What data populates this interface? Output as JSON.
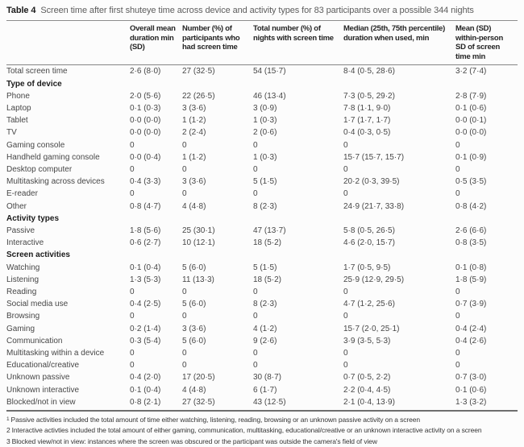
{
  "table": {
    "label": "Table 4",
    "title": "Screen time after first shuteye time across device and activity types for 83 participants over a possible 344 nights",
    "columns": [
      "",
      "Overall mean duration min (SD)",
      "Number (%) of participants who had screen time",
      "Total number (%) of nights with screen time",
      "Median (25th, 75th percentile) duration when used, min",
      "Mean (SD) within-person SD of screen time min"
    ],
    "rows": [
      {
        "label": "Total screen time",
        "sup": "",
        "type": "data",
        "values": [
          "2·6 (8·0)",
          "27 (32·5)",
          "54 (15·7)",
          "8·4 (0·5, 28·6)",
          "3·2 (7·4)"
        ]
      },
      {
        "label": "Type of device",
        "sup": "",
        "type": "section",
        "values": [
          "",
          "",
          "",
          "",
          ""
        ]
      },
      {
        "label": "Phone",
        "sup": "",
        "type": "data",
        "values": [
          "2·0 (5·6)",
          "22 (26·5)",
          "46 (13·4)",
          "7·3 (0·5, 29·2)",
          "2·8 (7·9)"
        ]
      },
      {
        "label": "Laptop",
        "sup": "",
        "type": "data",
        "values": [
          "0·1 (0·3)",
          "3 (3·6)",
          "3 (0·9)",
          "7·8 (1·1, 9·0)",
          "0·1 (0·6)"
        ]
      },
      {
        "label": "Tablet",
        "sup": "",
        "type": "data",
        "values": [
          "0·0 (0·0)",
          "1 (1·2)",
          "1 (0·3)",
          "1·7 (1·7, 1·7)",
          "0·0 (0·1)"
        ]
      },
      {
        "label": "TV",
        "sup": "",
        "type": "data",
        "values": [
          "0·0 (0·0)",
          "2 (2·4)",
          "2 (0·6)",
          "0·4 (0·3, 0·5)",
          "0·0 (0·0)"
        ]
      },
      {
        "label": "Gaming console",
        "sup": "",
        "type": "data",
        "values": [
          "0",
          "0",
          "0",
          "0",
          "0"
        ]
      },
      {
        "label": "Handheld gaming console",
        "sup": "",
        "type": "data",
        "values": [
          "0·0 (0·4)",
          "1 (1·2)",
          "1 (0·3)",
          "15·7 (15·7, 15·7)",
          "0·1 (0·9)"
        ]
      },
      {
        "label": "Desktop computer",
        "sup": "",
        "type": "data",
        "values": [
          "0",
          "0",
          "0",
          "0",
          "0"
        ]
      },
      {
        "label": "Multitasking across devices",
        "sup": "",
        "type": "data",
        "values": [
          "0·4 (3·3)",
          "3 (3·6)",
          "5 (1·5)",
          "20·2 (0·3, 39·5)",
          "0·5 (3·5)"
        ]
      },
      {
        "label": "E-reader",
        "sup": "",
        "type": "data",
        "values": [
          "0",
          "0",
          "0",
          "0",
          "0"
        ]
      },
      {
        "label": "Other",
        "sup": "",
        "type": "data",
        "values": [
          "0·8 (4·7)",
          "4 (4·8)",
          "8 (2·3)",
          "24·9 (21·7, 33·8)",
          "0·8 (4·2)"
        ]
      },
      {
        "label": "Activity types",
        "sup": "",
        "type": "section",
        "values": [
          "",
          "",
          "",
          "",
          ""
        ]
      },
      {
        "label": "Passive",
        "sup": "1",
        "type": "data",
        "values": [
          "1·8 (5·6)",
          "25 (30·1)",
          "47 (13·7)",
          "5·8 (0·5, 26·5)",
          "2·6 (6·6)"
        ]
      },
      {
        "label": "Interactive",
        "sup": "2",
        "type": "data",
        "values": [
          "0·6 (2·7)",
          "10 (12·1)",
          "18 (5·2)",
          "4·6 (2·0, 15·7)",
          "0·8 (3·5)"
        ]
      },
      {
        "label": "Screen activities",
        "sup": "",
        "type": "section",
        "values": [
          "",
          "",
          "",
          "",
          ""
        ]
      },
      {
        "label": "Watching",
        "sup": "",
        "type": "data",
        "values": [
          "0·1 (0·4)",
          "5 (6·0)",
          "5 (1·5)",
          "1·7 (0·5, 9·5)",
          "0·1 (0·8)"
        ]
      },
      {
        "label": "Listening",
        "sup": "",
        "type": "data",
        "values": [
          "1·3 (5·3)",
          "11 (13·3)",
          "18 (5·2)",
          "25·9 (12·9, 29·5)",
          "1·8 (5·9)"
        ]
      },
      {
        "label": "Reading",
        "sup": "",
        "type": "data",
        "values": [
          "0",
          "0",
          "0",
          "0",
          "0"
        ]
      },
      {
        "label": "Social media use",
        "sup": "",
        "type": "data",
        "values": [
          "0·4 (2·5)",
          "5 (6·0)",
          "8 (2·3)",
          "4·7 (1·2, 25·6)",
          "0·7 (3·9)"
        ]
      },
      {
        "label": "Browsing",
        "sup": "",
        "type": "data",
        "values": [
          "0",
          "0",
          "0",
          "0",
          "0"
        ]
      },
      {
        "label": "Gaming",
        "sup": "",
        "type": "data",
        "values": [
          "0·2 (1·4)",
          "3 (3·6)",
          "4 (1·2)",
          "15·7 (2·0, 25·1)",
          "0·4 (2·4)"
        ]
      },
      {
        "label": "Communication",
        "sup": "",
        "type": "data",
        "values": [
          "0·3 (5·4)",
          "5 (6·0)",
          "9 (2·6)",
          "3·9 (3·5, 5·3)",
          "0·4 (2·6)"
        ]
      },
      {
        "label": "Multitasking within a device",
        "sup": "",
        "type": "data",
        "values": [
          "0",
          "0",
          "0",
          "0",
          "0"
        ]
      },
      {
        "label": "Educational/creative",
        "sup": "",
        "type": "data",
        "values": [
          "0",
          "0",
          "0",
          "0",
          "0"
        ]
      },
      {
        "label": "Unknown passive",
        "sup": "",
        "type": "data",
        "values": [
          "0·4 (2·0)",
          "17 (20·5)",
          "30 (8·7)",
          "0·7 (0·5, 2·2)",
          "0·7 (3·0)"
        ]
      },
      {
        "label": "Unknown interactive",
        "sup": "",
        "type": "data",
        "values": [
          "0·1 (0·4)",
          "4 (4·8)",
          "6 (1·7)",
          "2·2 (0·4, 4·5)",
          "0·1 (0·6)"
        ]
      },
      {
        "label": "Blocked/not in view",
        "sup": "",
        "type": "data",
        "values": [
          "0·8 (2·1)",
          "27 (32·5)",
          "43 (12·5)",
          "2·1 (0·4, 13·9)",
          "1·3 (3·2)"
        ]
      }
    ],
    "footnotes": [
      {
        "marker": "1",
        "superscript": true,
        "text": "Passive activities included the total amount of time either watching, listening, reading, browsing or an unknown passive activity on a screen"
      },
      {
        "marker": "2",
        "superscript": false,
        "text": "Interactive activties included the total amount of either gaming, communication, multitasking, educational/creative or an unknown interactive activity on a screen"
      },
      {
        "marker": "3",
        "superscript": false,
        "text": "Blocked view/not in view: instances where the screen was obscured or the participant was outside the camera's field of view"
      }
    ]
  }
}
